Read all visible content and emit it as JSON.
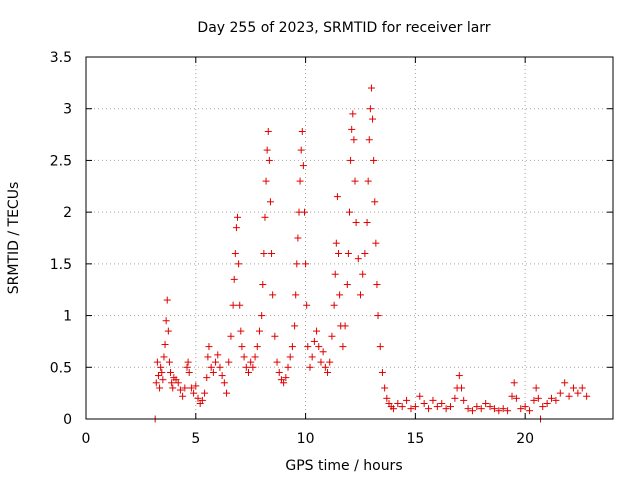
{
  "chart_data": {
    "type": "scatter",
    "title": "Day 255 of 2023, SRMTID for receiver larr",
    "xlabel": "GPS time / hours",
    "ylabel": "SRMTID / TECUs",
    "xlim": [
      0,
      24
    ],
    "ylim": [
      0,
      3.5
    ],
    "xticks": [
      0,
      5,
      10,
      15,
      20
    ],
    "xtick_labels": [
      "0",
      "5",
      "10",
      "15",
      "20"
    ],
    "yticks": [
      0,
      0.5,
      1,
      1.5,
      2,
      2.5,
      3,
      3.5
    ],
    "ytick_labels": [
      "0",
      "0.5",
      "1",
      "1.5",
      "2",
      "2.5",
      "3",
      "3.5"
    ],
    "grid": true,
    "marker": "+",
    "color": "#e00000",
    "series": [
      {
        "name": "SRMTID",
        "points": [
          [
            3.15,
            0.0
          ],
          [
            3.2,
            0.35
          ],
          [
            3.25,
            0.55
          ],
          [
            3.3,
            0.42
          ],
          [
            3.35,
            0.3
          ],
          [
            3.4,
            0.5
          ],
          [
            3.45,
            0.45
          ],
          [
            3.5,
            0.38
          ],
          [
            3.55,
            0.6
          ],
          [
            3.6,
            0.72
          ],
          [
            3.65,
            0.95
          ],
          [
            3.7,
            1.15
          ],
          [
            3.75,
            0.85
          ],
          [
            3.8,
            0.55
          ],
          [
            3.85,
            0.45
          ],
          [
            3.9,
            0.35
          ],
          [
            3.95,
            0.3
          ],
          [
            4.0,
            0.4
          ],
          [
            4.1,
            0.38
          ],
          [
            4.2,
            0.35
          ],
          [
            4.3,
            0.28
          ],
          [
            4.4,
            0.22
          ],
          [
            4.5,
            0.3
          ],
          [
            4.6,
            0.5
          ],
          [
            4.65,
            0.55
          ],
          [
            4.7,
            0.45
          ],
          [
            4.8,
            0.3
          ],
          [
            4.9,
            0.25
          ],
          [
            5.0,
            0.32
          ],
          [
            5.1,
            0.2
          ],
          [
            5.2,
            0.15
          ],
          [
            5.3,
            0.18
          ],
          [
            5.4,
            0.25
          ],
          [
            5.5,
            0.4
          ],
          [
            5.55,
            0.6
          ],
          [
            5.6,
            0.7
          ],
          [
            5.7,
            0.5
          ],
          [
            5.8,
            0.45
          ],
          [
            5.9,
            0.55
          ],
          [
            6.0,
            0.62
          ],
          [
            6.1,
            0.5
          ],
          [
            6.2,
            0.42
          ],
          [
            6.3,
            0.35
          ],
          [
            6.4,
            0.25
          ],
          [
            6.5,
            0.55
          ],
          [
            6.6,
            0.8
          ],
          [
            6.7,
            1.1
          ],
          [
            6.75,
            1.35
          ],
          [
            6.8,
            1.6
          ],
          [
            6.85,
            1.85
          ],
          [
            6.9,
            1.95
          ],
          [
            6.95,
            1.5
          ],
          [
            7.0,
            1.1
          ],
          [
            7.05,
            0.85
          ],
          [
            7.1,
            0.7
          ],
          [
            7.2,
            0.6
          ],
          [
            7.3,
            0.5
          ],
          [
            7.4,
            0.45
          ],
          [
            7.5,
            0.55
          ],
          [
            7.6,
            0.5
          ],
          [
            7.7,
            0.6
          ],
          [
            7.8,
            0.7
          ],
          [
            7.9,
            0.85
          ],
          [
            8.0,
            1.0
          ],
          [
            8.05,
            1.3
          ],
          [
            8.1,
            1.6
          ],
          [
            8.15,
            1.95
          ],
          [
            8.2,
            2.3
          ],
          [
            8.25,
            2.6
          ],
          [
            8.3,
            2.78
          ],
          [
            8.35,
            2.5
          ],
          [
            8.4,
            2.1
          ],
          [
            8.45,
            1.6
          ],
          [
            8.5,
            1.2
          ],
          [
            8.6,
            0.8
          ],
          [
            8.7,
            0.55
          ],
          [
            8.8,
            0.45
          ],
          [
            8.9,
            0.38
          ],
          [
            9.0,
            0.35
          ],
          [
            9.1,
            0.4
          ],
          [
            9.2,
            0.5
          ],
          [
            9.3,
            0.6
          ],
          [
            9.4,
            0.7
          ],
          [
            9.5,
            0.9
          ],
          [
            9.55,
            1.2
          ],
          [
            9.6,
            1.5
          ],
          [
            9.65,
            1.75
          ],
          [
            9.7,
            2.0
          ],
          [
            9.75,
            2.3
          ],
          [
            9.8,
            2.6
          ],
          [
            9.85,
            2.78
          ],
          [
            9.9,
            2.45
          ],
          [
            9.95,
            2.0
          ],
          [
            10.0,
            1.5
          ],
          [
            10.05,
            1.1
          ],
          [
            10.1,
            0.7
          ],
          [
            10.2,
            0.5
          ],
          [
            10.3,
            0.6
          ],
          [
            10.4,
            0.75
          ],
          [
            10.5,
            0.85
          ],
          [
            10.6,
            0.7
          ],
          [
            10.7,
            0.55
          ],
          [
            10.8,
            0.65
          ],
          [
            10.9,
            0.5
          ],
          [
            11.0,
            0.45
          ],
          [
            11.1,
            0.55
          ],
          [
            11.2,
            0.8
          ],
          [
            11.3,
            1.1
          ],
          [
            11.35,
            1.4
          ],
          [
            11.4,
            1.7
          ],
          [
            11.45,
            2.15
          ],
          [
            11.5,
            1.6
          ],
          [
            11.55,
            1.2
          ],
          [
            11.6,
            0.9
          ],
          [
            11.7,
            0.7
          ],
          [
            11.8,
            0.9
          ],
          [
            11.9,
            1.3
          ],
          [
            11.95,
            1.6
          ],
          [
            12.0,
            2.0
          ],
          [
            12.05,
            2.5
          ],
          [
            12.1,
            2.8
          ],
          [
            12.15,
            2.95
          ],
          [
            12.2,
            2.7
          ],
          [
            12.25,
            2.3
          ],
          [
            12.3,
            1.9
          ],
          [
            12.4,
            1.55
          ],
          [
            12.5,
            1.2
          ],
          [
            12.6,
            1.4
          ],
          [
            12.7,
            1.6
          ],
          [
            12.8,
            1.9
          ],
          [
            12.85,
            2.3
          ],
          [
            12.9,
            2.7
          ],
          [
            12.95,
            3.0
          ],
          [
            13.0,
            3.2
          ],
          [
            13.05,
            2.9
          ],
          [
            13.1,
            2.5
          ],
          [
            13.15,
            2.1
          ],
          [
            13.2,
            1.7
          ],
          [
            13.25,
            1.3
          ],
          [
            13.3,
            1.0
          ],
          [
            13.4,
            0.7
          ],
          [
            13.5,
            0.45
          ],
          [
            13.6,
            0.3
          ],
          [
            13.7,
            0.2
          ],
          [
            13.8,
            0.15
          ],
          [
            13.9,
            0.12
          ],
          [
            14.0,
            0.1
          ],
          [
            14.2,
            0.15
          ],
          [
            14.4,
            0.12
          ],
          [
            14.6,
            0.18
          ],
          [
            14.8,
            0.1
          ],
          [
            15.0,
            0.12
          ],
          [
            15.2,
            0.22
          ],
          [
            15.4,
            0.15
          ],
          [
            15.6,
            0.1
          ],
          [
            15.8,
            0.18
          ],
          [
            16.0,
            0.12
          ],
          [
            16.2,
            0.15
          ],
          [
            16.4,
            0.1
          ],
          [
            16.6,
            0.12
          ],
          [
            16.8,
            0.2
          ],
          [
            16.9,
            0.3
          ],
          [
            17.0,
            0.42
          ],
          [
            17.1,
            0.3
          ],
          [
            17.2,
            0.18
          ],
          [
            17.4,
            0.1
          ],
          [
            17.6,
            0.08
          ],
          [
            17.8,
            0.12
          ],
          [
            18.0,
            0.1
          ],
          [
            18.2,
            0.15
          ],
          [
            18.4,
            0.12
          ],
          [
            18.6,
            0.1
          ],
          [
            18.8,
            0.08
          ],
          [
            19.0,
            0.1
          ],
          [
            19.2,
            0.08
          ],
          [
            19.4,
            0.22
          ],
          [
            19.5,
            0.35
          ],
          [
            19.6,
            0.2
          ],
          [
            19.8,
            0.1
          ],
          [
            20.0,
            0.12
          ],
          [
            20.2,
            0.08
          ],
          [
            20.4,
            0.18
          ],
          [
            20.5,
            0.3
          ],
          [
            20.6,
            0.2
          ],
          [
            20.7,
            0.0
          ],
          [
            20.8,
            0.12
          ],
          [
            21.0,
            0.15
          ],
          [
            21.2,
            0.2
          ],
          [
            21.4,
            0.18
          ],
          [
            21.6,
            0.25
          ],
          [
            21.8,
            0.35
          ],
          [
            22.0,
            0.22
          ],
          [
            22.2,
            0.3
          ],
          [
            22.4,
            0.25
          ],
          [
            22.6,
            0.3
          ],
          [
            22.8,
            0.22
          ]
        ]
      }
    ]
  }
}
